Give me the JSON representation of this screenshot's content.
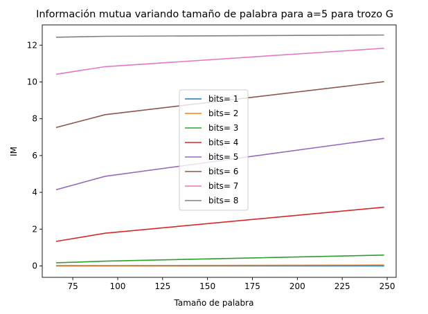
{
  "chart_data": {
    "type": "line",
    "title": "Información mutua variando tamaño de palabra para  a=5 para trozo G",
    "xlabel": "Tamaño de palabra",
    "ylabel": "IM",
    "xlim": [
      58,
      255
    ],
    "ylim": [
      -0.62,
      13.1
    ],
    "xticks": [
      75,
      100,
      125,
      150,
      175,
      200,
      225,
      250
    ],
    "yticks": [
      0,
      2,
      4,
      6,
      8,
      10,
      12
    ],
    "x": [
      66,
      93,
      248
    ],
    "grid": false,
    "legend_position": "center",
    "series": [
      {
        "name": "bits= 1",
        "color": "#1f77b4",
        "values": [
          0.0,
          0.0,
          0.0
        ]
      },
      {
        "name": "bits= 2",
        "color": "#ff7f0e",
        "values": [
          0.02,
          0.02,
          0.05
        ]
      },
      {
        "name": "bits= 3",
        "color": "#2ca02c",
        "values": [
          0.17,
          0.26,
          0.59
        ]
      },
      {
        "name": "bits= 4",
        "color": "#d62728",
        "values": [
          1.34,
          1.78,
          3.19
        ]
      },
      {
        "name": "bits= 5",
        "color": "#9467bd",
        "values": [
          4.15,
          4.87,
          6.93
        ]
      },
      {
        "name": "bits= 6",
        "color": "#8c564b",
        "values": [
          7.53,
          8.22,
          10.01
        ]
      },
      {
        "name": "bits= 7",
        "color": "#e377c2",
        "values": [
          10.42,
          10.83,
          11.83
        ]
      },
      {
        "name": "bits= 8",
        "color": "#7f7f7f",
        "values": [
          12.43,
          12.48,
          12.55
        ]
      }
    ]
  }
}
